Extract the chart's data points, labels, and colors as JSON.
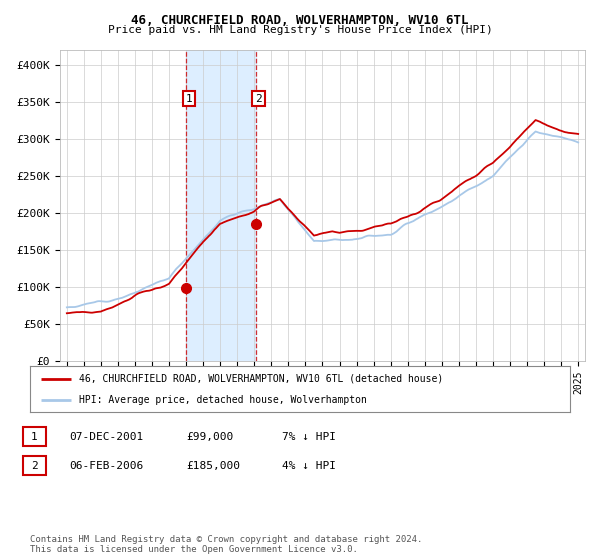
{
  "title_line1": "46, CHURCHFIELD ROAD, WOLVERHAMPTON, WV10 6TL",
  "title_line2": "Price paid vs. HM Land Registry's House Price Index (HPI)",
  "ylim": [
    0,
    420000
  ],
  "yticks": [
    0,
    50000,
    100000,
    150000,
    200000,
    250000,
    300000,
    350000,
    400000
  ],
  "ytick_labels": [
    "£0",
    "£50K",
    "£100K",
    "£150K",
    "£200K",
    "£250K",
    "£300K",
    "£350K",
    "£400K"
  ],
  "hpi_color": "#a8c8e8",
  "price_color": "#cc0000",
  "t1_x": 2002.0,
  "t1_y": 99000,
  "t2_x": 2006.1,
  "t2_y": 185000,
  "highlight_color": "#ddeeff",
  "legend_entry1": "46, CHURCHFIELD ROAD, WOLVERHAMPTON, WV10 6TL (detached house)",
  "legend_entry2": "HPI: Average price, detached house, Wolverhampton",
  "table_row1_date": "07-DEC-2001",
  "table_row1_price": "£99,000",
  "table_row1_hpi": "7% ↓ HPI",
  "table_row2_date": "06-FEB-2006",
  "table_row2_price": "£185,000",
  "table_row2_hpi": "4% ↓ HPI",
  "footer": "Contains HM Land Registry data © Crown copyright and database right 2024.\nThis data is licensed under the Open Government Licence v3.0.",
  "bg_color": "#ffffff",
  "grid_color": "#cccccc",
  "xmin": 1995,
  "xmax": 2025
}
